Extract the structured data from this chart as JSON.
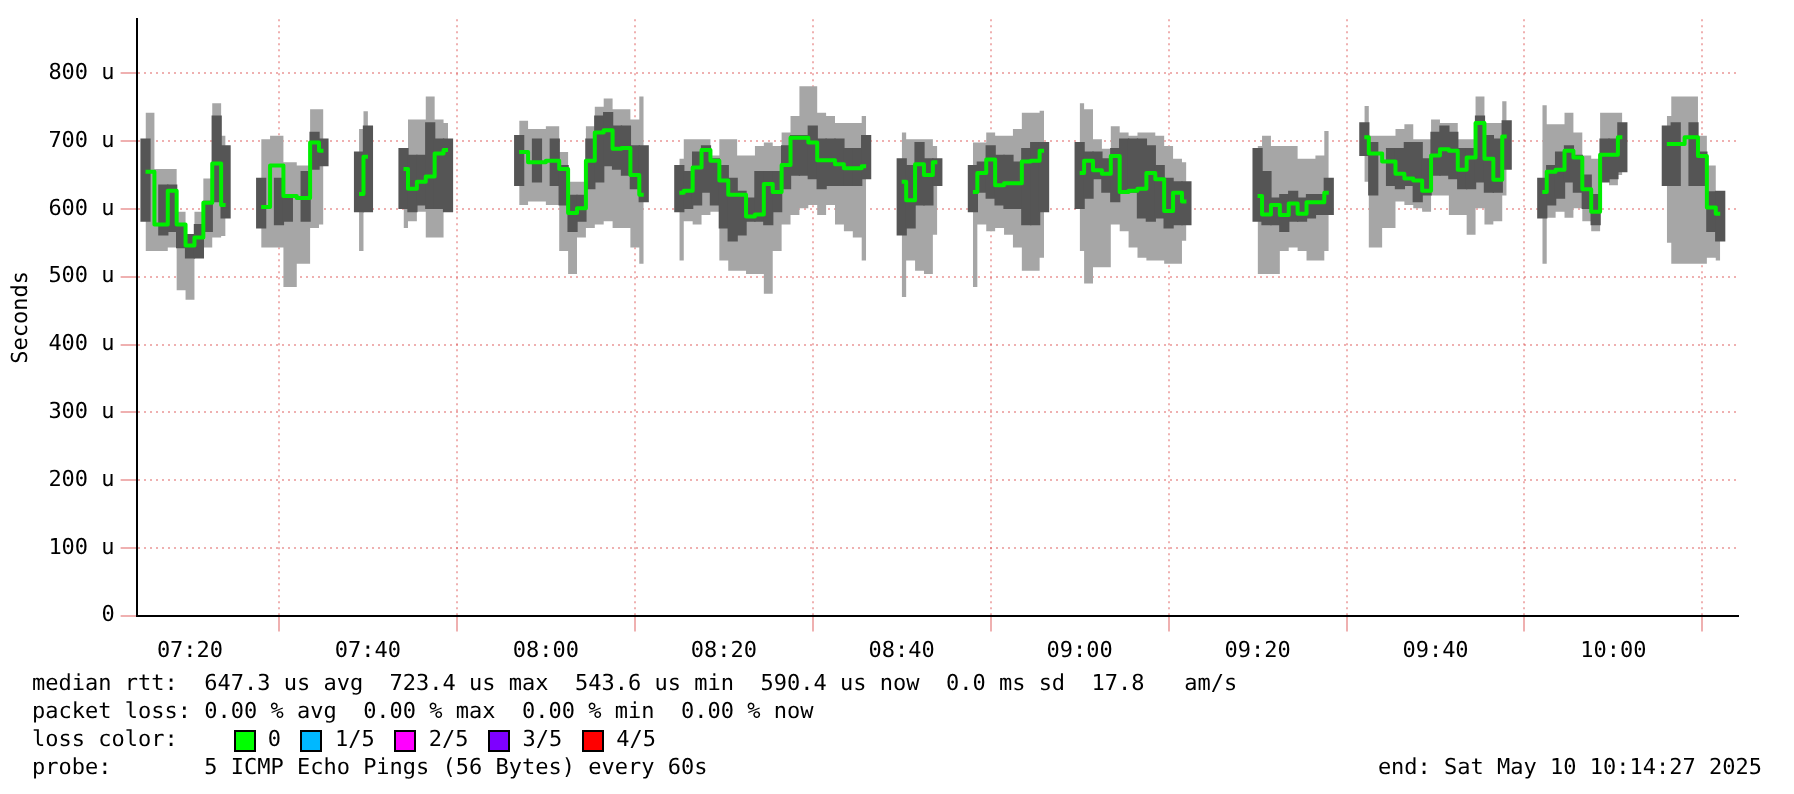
{
  "chart_data": {
    "type": "step",
    "ylabel": "Seconds",
    "x": [
      "2025-05-10T07:15",
      "2025-05-10T07:17",
      "2025-05-10T07:18",
      "2025-05-10T07:19",
      "2025-05-10T07:20",
      "2025-05-10T07:21",
      "2025-05-10T07:22",
      "2025-05-10T07:23",
      "2025-05-10T07:24",
      "2025-05-10T07:26",
      "2025-05-10T07:28",
      "2025-05-10T07:30",
      "2025-05-10T07:31",
      "2025-05-10T07:33",
      "2025-05-10T07:34",
      "2025-05-10T07:35",
      "2025-05-10T07:37",
      "2025-05-10T07:39",
      "2025-05-10T07:40",
      "2025-05-10T07:42",
      "2025-05-10T07:44",
      "2025-05-10T07:45",
      "2025-05-10T07:46",
      "2025-05-10T07:47",
      "2025-05-10T07:48",
      "2025-05-10T07:49",
      "2025-05-10T07:53",
      "2025-05-10T07:57",
      "2025-05-10T07:59",
      "2025-05-10T08:01",
      "2025-05-10T08:02",
      "2025-05-10T08:03",
      "2025-05-10T08:04",
      "2025-05-10T08:05",
      "2025-05-10T08:06",
      "2025-05-10T08:07",
      "2025-05-10T08:08",
      "2025-05-10T08:09",
      "2025-05-10T08:10",
      "2025-05-10T08:11",
      "2025-05-10T08:13",
      "2025-05-10T08:15",
      "2025-05-10T08:16",
      "2025-05-10T08:17",
      "2025-05-10T08:18",
      "2025-05-10T08:19",
      "2025-05-10T08:20",
      "2025-05-10T08:21",
      "2025-05-10T08:22",
      "2025-05-10T08:23",
      "2025-05-10T08:24",
      "2025-05-10T08:25",
      "2025-05-10T08:26",
      "2025-05-10T08:27",
      "2025-05-10T08:28",
      "2025-05-10T08:29",
      "2025-05-10T08:30",
      "2025-05-10T08:31",
      "2025-05-10T08:32",
      "2025-05-10T08:33",
      "2025-05-10T08:34",
      "2025-05-10T08:35",
      "2025-05-10T08:36",
      "2025-05-10T08:38",
      "2025-05-10T08:40",
      "2025-05-10T08:41",
      "2025-05-10T08:42",
      "2025-05-10T08:43",
      "2025-05-10T08:44",
      "2025-05-10T08:46",
      "2025-05-10T08:48",
      "2025-05-10T08:49",
      "2025-05-10T08:50",
      "2025-05-10T08:51",
      "2025-05-10T08:52",
      "2025-05-10T08:53",
      "2025-05-10T08:54",
      "2025-05-10T08:55",
      "2025-05-10T08:56",
      "2025-05-10T08:58",
      "2025-05-10T09:00",
      "2025-05-10T09:01",
      "2025-05-10T09:02",
      "2025-05-10T09:03",
      "2025-05-10T09:04",
      "2025-05-10T09:05",
      "2025-05-10T09:06",
      "2025-05-10T09:07",
      "2025-05-10T09:08",
      "2025-05-10T09:09",
      "2025-05-10T09:10",
      "2025-05-10T09:11",
      "2025-05-10T09:12",
      "2025-05-10T09:16",
      "2025-05-10T09:20",
      "2025-05-10T09:21",
      "2025-05-10T09:22",
      "2025-05-10T09:23",
      "2025-05-10T09:24",
      "2025-05-10T09:25",
      "2025-05-10T09:26",
      "2025-05-10T09:27",
      "2025-05-10T09:28",
      "2025-05-10T09:30",
      "2025-05-10T09:32",
      "2025-05-10T09:33",
      "2025-05-10T09:35",
      "2025-05-10T09:36",
      "2025-05-10T09:37",
      "2025-05-10T09:38",
      "2025-05-10T09:39",
      "2025-05-10T09:40",
      "2025-05-10T09:41",
      "2025-05-10T09:42",
      "2025-05-10T09:43",
      "2025-05-10T09:44",
      "2025-05-10T09:45",
      "2025-05-10T09:46",
      "2025-05-10T09:47",
      "2025-05-10T09:48",
      "2025-05-10T09:50",
      "2025-05-10T09:52",
      "2025-05-10T09:53",
      "2025-05-10T09:54",
      "2025-05-10T09:55",
      "2025-05-10T09:56",
      "2025-05-10T09:57",
      "2025-05-10T09:58",
      "2025-05-10T09:59",
      "2025-05-10T10:00",
      "2025-05-10T10:01",
      "2025-05-10T10:03",
      "2025-05-10T10:06",
      "2025-05-10T10:07",
      "2025-05-10T10:09",
      "2025-05-10T10:10",
      "2025-05-10T10:11",
      "2025-05-10T10:12"
    ],
    "series": [
      {
        "type": "bar",
        "color": "#555555",
        "base": [
          582,
          562,
          567,
          543,
          528,
          528,
          567,
          611,
          587,
          null,
          572,
          577,
          582,
          582,
          659,
          664,
          null,
          596,
          596,
          null,
          601,
          596,
          606,
          601,
          601,
          596,
          null,
          635,
          640,
          635,
          606,
          567,
          582,
          630,
          640,
          664,
          659,
          650,
          630,
          611,
          null,
          596,
          601,
          606,
          625,
          606,
          572,
          553,
          562,
          582,
          582,
          577,
          596,
          630,
          650,
          650,
          645,
          630,
          635,
          635,
          635,
          635,
          645,
          null,
          562,
          572,
          606,
          606,
          635,
          null,
          596,
          625,
          616,
          606,
          601,
          601,
          577,
          577,
          596,
          null,
          601,
          616,
          645,
          625,
          611,
          625,
          625,
          587,
          582,
          587,
          572,
          577,
          577,
          null,
          582,
          577,
          577,
          567,
          582,
          582,
          587,
          592,
          592,
          null,
          679,
          621,
          635,
          630,
          635,
          611,
          621,
          650,
          650,
          645,
          630,
          630,
          640,
          625,
          625,
          659,
          null,
          587,
          606,
          616,
          640,
          625,
          601,
          577,
          640,
          645,
          655,
          null,
          635,
          635,
          635,
          635,
          567,
          553
        ],
        "values": [
          121,
          73,
          68,
          34,
          34,
          49,
          44,
          126,
          106,
          null,
          73,
          68,
          39,
          73,
          54,
          39,
          null,
          88,
          126,
          null,
          88,
          83,
          73,
          126,
          102,
          107,
          null,
          73,
          63,
          68,
          58,
          53,
          38,
          73,
          97,
          78,
          63,
          72,
          63,
          82,
          null,
          68,
          54,
          78,
          68,
          68,
          92,
          92,
          64,
          34,
          73,
          78,
          59,
          63,
          58,
          58,
          77,
          73,
          68,
          68,
          54,
          54,
          63,
          null,
          112,
          92,
          92,
          68,
          39,
          null,
          68,
          44,
          77,
          73,
          78,
          68,
          112,
          121,
          102,
          null,
          97,
          68,
          39,
          49,
          78,
          78,
          78,
          116,
          111,
          77,
          73,
          63,
          63,
          null,
          107,
          78,
          39,
          54,
          44,
          34,
          34,
          29,
          53,
          null,
          48,
          77,
          54,
          59,
          63,
          87,
          53,
          63,
          72,
          68,
          59,
          59,
          97,
          83,
          78,
          71,
          null,
          58,
          58,
          68,
          53,
          54,
          49,
          44,
          63,
          58,
          72,
          null,
          87,
          92,
          92,
          49,
          58,
          73
        ]
      },
      {
        "color": "#00ee00",
        "values": [
          655,
          577,
          627,
          577,
          546,
          558,
          609,
          667,
          606,
          null,
          603,
          664,
          619,
          616,
          698,
          686,
          null,
          622,
          677,
          null,
          659,
          630,
          640,
          648,
          682,
          687,
          null,
          684,
          669,
          671,
          659,
          594,
          601,
          671,
          713,
          716,
          689,
          690,
          650,
          621,
          null,
          624,
          627,
          661,
          687,
          671,
          642,
          621,
          621,
          589,
          592,
          637,
          625,
          665,
          705,
          705,
          698,
          672,
          672,
          666,
          660,
          660,
          663,
          null,
          640,
          613,
          666,
          650,
          669,
          null,
          625,
          653,
          673,
          635,
          638,
          638,
          670,
          671,
          686,
          null,
          653,
          671,
          657,
          652,
          678,
          625,
          627,
          630,
          653,
          644,
          597,
          624,
          611,
          null,
          619,
          592,
          606,
          591,
          608,
          593,
          610,
          610,
          624,
          null,
          706,
          682,
          670,
          652,
          645,
          642,
          627,
          679,
          688,
          686,
          658,
          676,
          727,
          674,
          643,
          707,
          null,
          625,
          655,
          658,
          686,
          676,
          629,
          596,
          680,
          680,
          706,
          null,
          696,
          696,
          706,
          678,
          602,
          593
        ],
        "lower": [
          538,
          538,
          543,
          480,
          466,
          528,
          543,
          558,
          560,
          null,
          543,
          543,
          485,
          519,
          572,
          577,
          null,
          538,
          596,
          null,
          572,
          582,
          596,
          558,
          558,
          596,
          null,
          606,
          611,
          606,
          538,
          504,
          558,
          572,
          577,
          582,
          572,
          572,
          543,
          519,
          null,
          524,
          582,
          577,
          591,
          596,
          524,
          509,
          509,
          504,
          504,
          475,
          538,
          577,
          591,
          601,
          606,
          591,
          606,
          577,
          567,
          558,
          524,
          null,
          470,
          524,
          509,
          504,
          562,
          null,
          485,
          577,
          567,
          572,
          562,
          543,
          509,
          509,
          528,
          null,
          538,
          490,
          514,
          514,
          577,
          567,
          543,
          528,
          524,
          524,
          519,
          519,
          553,
          null,
          504,
          504,
          504,
          538,
          543,
          538,
          524,
          524,
          538,
          null,
          640,
          543,
          572,
          611,
          606,
          601,
          596,
          620,
          620,
          591,
          591,
          562,
          601,
          577,
          582,
          620,
          null,
          519,
          587,
          596,
          587,
          601,
          582,
          567,
          640,
          635,
          650,
          null,
          550,
          519,
          519,
          519,
          528,
          524
        ],
        "upper": [
          742,
          659,
          659,
          596,
          562,
          596,
          645,
          756,
          708,
          null,
          703,
          708,
          669,
          664,
          747,
          747,
          null,
          718,
          744,
          null,
          689,
          732,
          732,
          766,
          732,
          727,
          null,
          730,
          718,
          722,
          684,
          640,
          640,
          722,
          751,
          763,
          747,
          747,
          732,
          766,
          null,
          674,
          703,
          703,
          703,
          679,
          703,
          703,
          679,
          679,
          693,
          698,
          693,
          713,
          737,
          781,
          781,
          742,
          737,
          727,
          727,
          727,
          737,
          null,
          713,
          703,
          703,
          703,
          693,
          null,
          698,
          698,
          713,
          708,
          708,
          718,
          742,
          742,
          745,
          null,
          756,
          747,
          703,
          689,
          722,
          713,
          708,
          713,
          713,
          708,
          693,
          674,
          669,
          null,
          693,
          708,
          693,
          693,
          693,
          674,
          674,
          679,
          715,
          null,
          752,
          708,
          708,
          718,
          725,
          703,
          703,
          732,
          727,
          727,
          703,
          703,
          766,
          727,
          727,
          759,
          null,
          753,
          725,
          725,
          742,
          713,
          679,
          674,
          742,
          742,
          742,
          null,
          737,
          766,
          766,
          708,
          664,
          626
        ]
      }
    ],
    "xlim": [
      "2025-05-10T07:14",
      "2025-05-10T10:14"
    ],
    "xticks": [
      {
        "value": "2025-05-10T07:20",
        "label": "07:20"
      },
      {
        "value": "2025-05-10T07:40",
        "label": "07:40"
      },
      {
        "value": "2025-05-10T08:00",
        "label": "08:00"
      },
      {
        "value": "2025-05-10T08:20",
        "label": "08:20"
      },
      {
        "value": "2025-05-10T08:40",
        "label": "08:40"
      },
      {
        "value": "2025-05-10T09:00",
        "label": "09:00"
      },
      {
        "value": "2025-05-10T09:20",
        "label": "09:20"
      },
      {
        "value": "2025-05-10T09:40",
        "label": "09:40"
      },
      {
        "value": "2025-05-10T10:00",
        "label": "10:00"
      }
    ],
    "ylim": [
      0,
      880
    ],
    "yticks": [
      0,
      {
        "value": 100,
        "label": "100 u"
      },
      {
        "value": 200,
        "label": "200 u"
      },
      {
        "value": 300,
        "label": "300 u"
      },
      {
        "value": 400,
        "label": "400 u"
      },
      {
        "value": 500,
        "label": "500 u"
      },
      {
        "value": 600,
        "label": "600 u"
      },
      {
        "value": 700,
        "label": "700 u"
      },
      {
        "value": 800,
        "label": "800 u"
      }
    ],
    "grid": true,
    "annotations": [
      "median rtt:  647.3 us avg  723.4 us max  543.6 us min  590.4 us now  0.0 ms sd  17.8   am/s",
      "packet loss: 0.00 % avg  0.00 % max  0.00 % min  0.00 % now",
      "loss color:",
      "0",
      "1/5",
      "2/5",
      "3/5",
      "4/5",
      "probe:       5 ICMP Echo Pings (56 Bytes) every 60s",
      "end: Sat May 10 10:14:27 2025"
    ]
  }
}
